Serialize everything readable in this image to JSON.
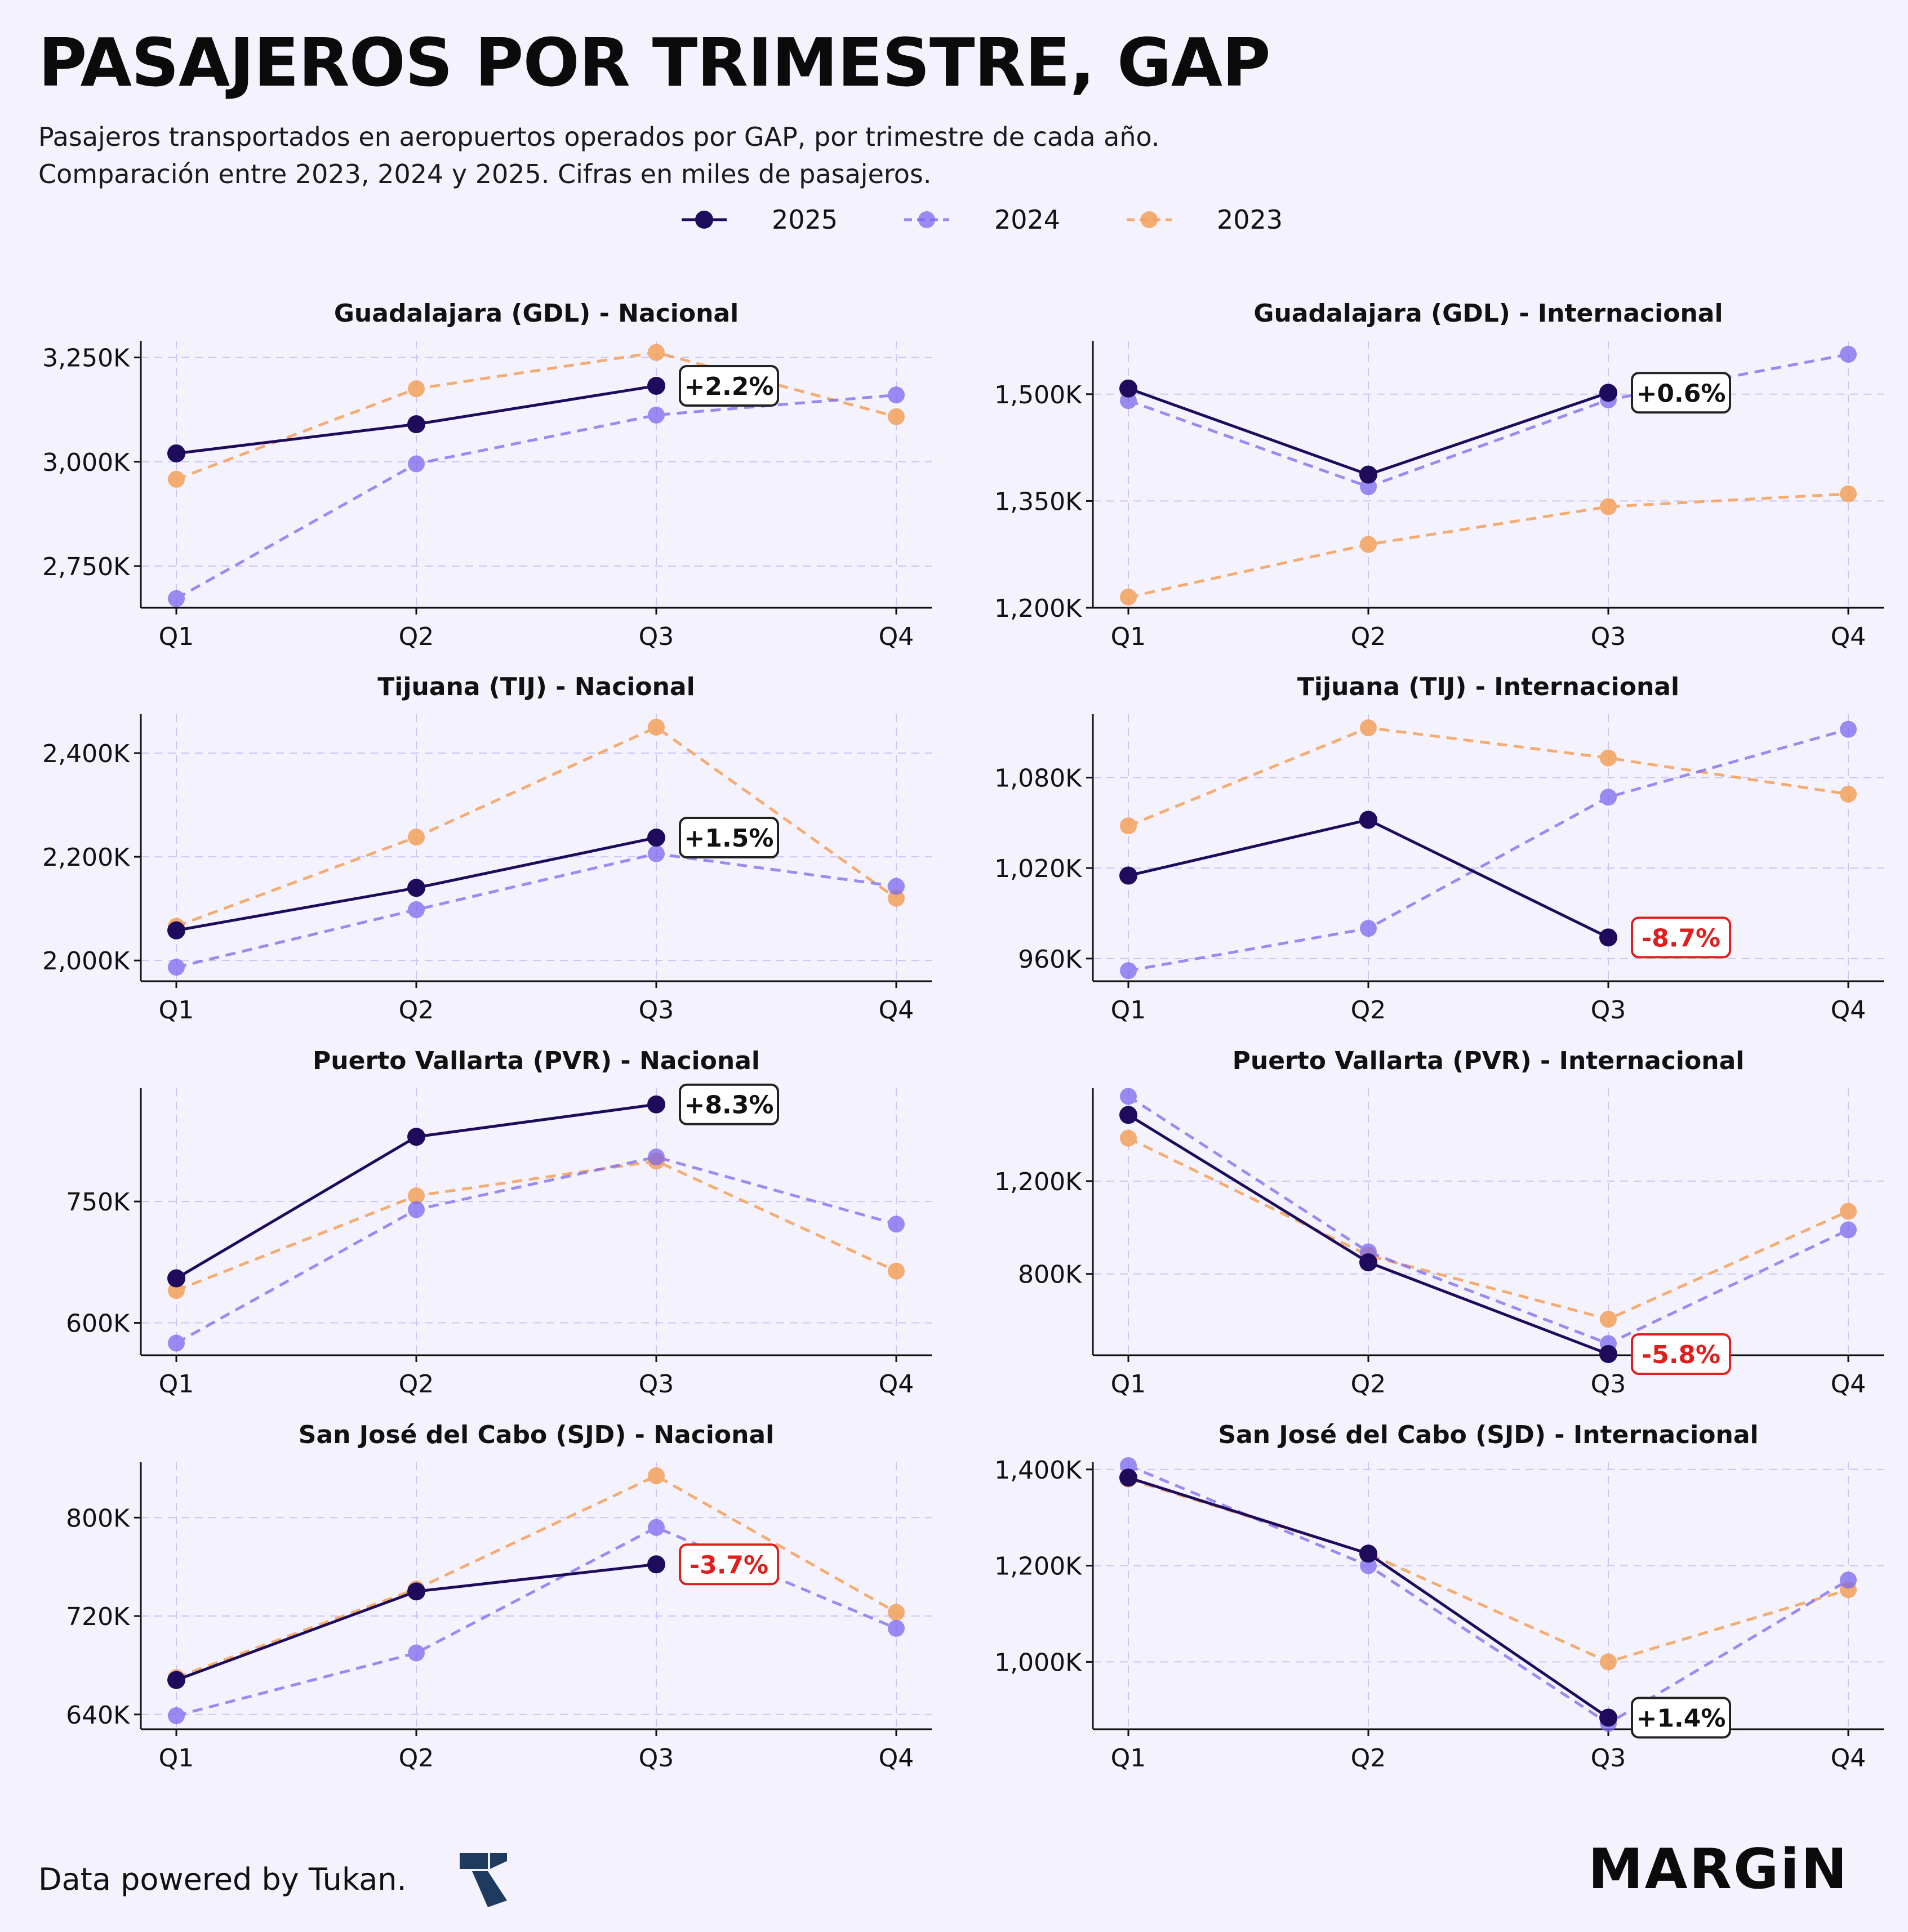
{
  "header": {
    "title": "PASAJEROS POR TRIMESTRE, GAP",
    "subtitle_line1": "Pasajeros transportados en aeropuertos operados por GAP, por trimestre de cada año.",
    "subtitle_line2": "Comparación entre 2023, 2024 y 2025. Cifras en miles de pasajeros."
  },
  "legend": [
    {
      "name": "2025",
      "color": "#1e0b5c",
      "style": "solid"
    },
    {
      "name": "2024",
      "color": "#7b68ee",
      "style": "dashed"
    },
    {
      "name": "2023",
      "color": "#f4a05a",
      "style": "dashed"
    }
  ],
  "chart_data": [
    {
      "type": "line",
      "title": "Guadalajara (GDL) - Nacional",
      "categories": [
        "Q1",
        "Q2",
        "Q3",
        "Q4"
      ],
      "ylim": [
        2650,
        3290
      ],
      "yticks": [
        2750,
        3000,
        3250
      ],
      "ytick_labels": [
        "2,750K",
        "3,000K",
        "3,250K"
      ],
      "series": [
        {
          "name": "2025",
          "values": [
            3020,
            3090,
            3182,
            null
          ]
        },
        {
          "name": "2024",
          "values": [
            2672,
            2995,
            3112,
            3160
          ]
        },
        {
          "name": "2023",
          "values": [
            2958,
            3175,
            3262,
            3108
          ]
        }
      ],
      "annotation": {
        "text": "+2.2%",
        "negative": false
      }
    },
    {
      "type": "line",
      "title": "Guadalajara (GDL) - Internacional",
      "categories": [
        "Q1",
        "Q2",
        "Q3",
        "Q4"
      ],
      "ylim": [
        1200,
        1575
      ],
      "yticks": [
        1200,
        1350,
        1500
      ],
      "ytick_labels": [
        "1,200K",
        "1,350K",
        "1,500K"
      ],
      "series": [
        {
          "name": "2025",
          "values": [
            1508,
            1387,
            1502,
            null
          ]
        },
        {
          "name": "2024",
          "values": [
            1491,
            1370,
            1492,
            1556
          ]
        },
        {
          "name": "2023",
          "values": [
            1215,
            1289,
            1342,
            1360
          ]
        }
      ],
      "annotation": {
        "text": "+0.6%",
        "negative": false
      }
    },
    {
      "type": "line",
      "title": "Tijuana (TIJ) - Nacional",
      "categories": [
        "Q1",
        "Q2",
        "Q3",
        "Q4"
      ],
      "ylim": [
        1960,
        2475
      ],
      "yticks": [
        2000,
        2200,
        2400
      ],
      "ytick_labels": [
        "2,000K",
        "2,200K",
        "2,400K"
      ],
      "series": [
        {
          "name": "2025",
          "values": [
            2058,
            2140,
            2237,
            null
          ]
        },
        {
          "name": "2024",
          "values": [
            1987,
            2098,
            2206,
            2143
          ]
        },
        {
          "name": "2023",
          "values": [
            2066,
            2238,
            2450,
            2120
          ]
        }
      ],
      "annotation": {
        "text": "+1.5%",
        "negative": false
      }
    },
    {
      "type": "line",
      "title": "Tijuana (TIJ) - Internacional",
      "categories": [
        "Q1",
        "Q2",
        "Q3",
        "Q4"
      ],
      "ylim": [
        945,
        1122
      ],
      "yticks": [
        960,
        1020,
        1080
      ],
      "ytick_labels": [
        "960K",
        "1,020K",
        "1,080K"
      ],
      "series": [
        {
          "name": "2025",
          "values": [
            1015,
            1052,
            974,
            null
          ]
        },
        {
          "name": "2024",
          "values": [
            952,
            980,
            1067,
            1112
          ]
        },
        {
          "name": "2023",
          "values": [
            1048,
            1113,
            1093,
            1069
          ]
        }
      ],
      "annotation": {
        "text": "-8.7%",
        "negative": true
      }
    },
    {
      "type": "line",
      "title": "Puerto Vallarta (PVR) - Nacional",
      "categories": [
        "Q1",
        "Q2",
        "Q3",
        "Q4"
      ],
      "ylim": [
        560,
        890
      ],
      "yticks": [
        600,
        750
      ],
      "ytick_labels": [
        "600K",
        "750K"
      ],
      "series": [
        {
          "name": "2025",
          "values": [
            655,
            830,
            870,
            null
          ]
        },
        {
          "name": "2024",
          "values": [
            575,
            740,
            805,
            722
          ]
        },
        {
          "name": "2023",
          "values": [
            640,
            757,
            800,
            664
          ]
        }
      ],
      "annotation": {
        "text": "+8.3%",
        "negative": false
      }
    },
    {
      "type": "line",
      "title": "Puerto Vallarta (PVR) - Internacional",
      "categories": [
        "Q1",
        "Q2",
        "Q3",
        "Q4"
      ],
      "ylim": [
        450,
        1600
      ],
      "yticks": [
        800,
        1200
      ],
      "ytick_labels": [
        "800K",
        "1,200K"
      ],
      "series": [
        {
          "name": "2025",
          "values": [
            1485,
            850,
            455,
            null
          ]
        },
        {
          "name": "2024",
          "values": [
            1565,
            895,
            500,
            990
          ]
        },
        {
          "name": "2023",
          "values": [
            1385,
            880,
            605,
            1070
          ]
        }
      ],
      "annotation": {
        "text": "-5.8%",
        "negative": true
      }
    },
    {
      "type": "line",
      "title": "San José del Cabo (SJD) - Nacional",
      "categories": [
        "Q1",
        "Q2",
        "Q3",
        "Q4"
      ],
      "ylim": [
        628,
        845
      ],
      "yticks": [
        640,
        720,
        800
      ],
      "ytick_labels": [
        "640K",
        "720K",
        "800K"
      ],
      "series": [
        {
          "name": "2025",
          "values": [
            668,
            740,
            762,
            null
          ]
        },
        {
          "name": "2024",
          "values": [
            639,
            690,
            792,
            710
          ]
        },
        {
          "name": "2023",
          "values": [
            670,
            742,
            834,
            723
          ]
        }
      ],
      "annotation": {
        "text": "-3.7%",
        "negative": true
      }
    },
    {
      "type": "line",
      "title": "San José del Cabo (SJD) - Internacional",
      "categories": [
        "Q1",
        "Q2",
        "Q3",
        "Q4"
      ],
      "ylim": [
        860,
        1415
      ],
      "yticks": [
        1000,
        1200,
        1400
      ],
      "ytick_labels": [
        "1,000K",
        "1,200K",
        "1,400K"
      ],
      "series": [
        {
          "name": "2025",
          "values": [
            1383,
            1225,
            884,
            null
          ]
        },
        {
          "name": "2024",
          "values": [
            1408,
            1200,
            872,
            1170
          ]
        },
        {
          "name": "2023",
          "values": [
            1380,
            1225,
            1000,
            1150
          ]
        }
      ],
      "annotation": {
        "text": "+1.4%",
        "negative": false
      }
    }
  ],
  "footer": {
    "credit": "Data powered by Tukan.",
    "brand": "MARGiN"
  }
}
